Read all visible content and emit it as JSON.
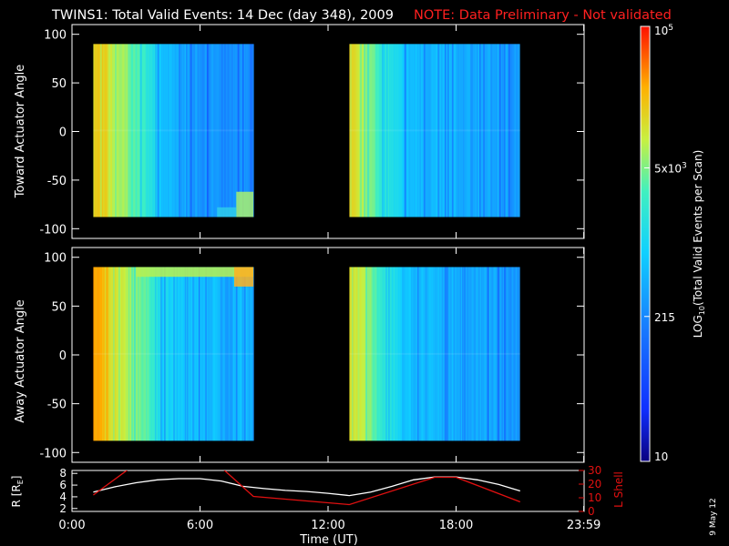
{
  "header": {
    "title": "TWINS1: Total Valid Events: 14 Dec (day 348), 2009",
    "note": "NOTE: Data Preliminary - Not validated"
  },
  "colors": {
    "background": "#000000",
    "axis": "#ffffff",
    "note": "#ff2020",
    "r_line": "#ffffff",
    "lshell_line": "#e01010"
  },
  "panels": {
    "toward": {
      "ylabel": "Toward Actuator Angle"
    },
    "away": {
      "ylabel": "Away Actuator Angle"
    }
  },
  "orbit": {
    "r_label": "R [R",
    "r_subscript": "E",
    "r_close": "]",
    "lshell_label": "L Shell"
  },
  "xaxis": {
    "label": "Time (UT)"
  },
  "colorbar": {
    "title": "LOG",
    "title_subscript": "10",
    "title_rest": "(Total Valid Events per Scan)"
  },
  "footer": {
    "date_stamp": "9 May 12"
  },
  "chart_data": [
    {
      "type": "heatmap",
      "name": "toward",
      "xlim": [
        0,
        24
      ],
      "ylim": [
        -110,
        110
      ],
      "yticks": [
        100,
        50,
        0,
        -50,
        -100
      ],
      "ytick_labels": [
        "100",
        "50",
        "0",
        "-50",
        "-100"
      ],
      "ylabel": "Toward Actuator Angle",
      "data_blocks": [
        [
          1.0,
          8.5
        ],
        [
          13.0,
          21.0
        ]
      ],
      "angle_range": [
        -88,
        90
      ]
    },
    {
      "type": "heatmap",
      "name": "away",
      "xlim": [
        0,
        24
      ],
      "ylim": [
        -110,
        110
      ],
      "yticks": [
        100,
        50,
        0,
        -50,
        -100
      ],
      "ytick_labels": [
        "100",
        "50",
        "0",
        "-50",
        "-100"
      ],
      "ylabel": "Away Actuator Angle",
      "data_blocks": [
        [
          1.0,
          8.5
        ],
        [
          13.0,
          21.0
        ]
      ],
      "angle_range": [
        -88,
        90
      ]
    },
    {
      "type": "line",
      "name": "orbit",
      "xlim": [
        0,
        24
      ],
      "xticks": [
        0,
        6,
        12,
        18,
        23.983
      ],
      "xtick_labels": [
        "0:00",
        "6:00",
        "12:00",
        "18:00",
        "23:59"
      ],
      "xlabel": "Time (UT)",
      "left_axis": {
        "ylim": [
          1.5,
          8.5
        ],
        "ticks": [
          2,
          4,
          6,
          8
        ],
        "tick_labels": [
          "2",
          "4",
          "6",
          "8"
        ]
      },
      "right_axis": {
        "ylim": [
          0,
          30
        ],
        "ticks": [
          0,
          10,
          20,
          30
        ],
        "tick_labels": [
          "0",
          "10",
          "20",
          "30"
        ]
      },
      "series": [
        {
          "name": "R",
          "axis": "left",
          "x": [
            1.0,
            2.0,
            3.0,
            4.0,
            5.0,
            6.0,
            7.0,
            8.0,
            9.0,
            10.0,
            11.0,
            12.0,
            13.0,
            14.0,
            15.0,
            16.0,
            17.0,
            18.0,
            19.0,
            20.0,
            21.0
          ],
          "y": [
            4.8,
            5.7,
            6.4,
            6.9,
            7.1,
            7.1,
            6.7,
            5.8,
            5.4,
            5.1,
            4.9,
            4.6,
            4.2,
            4.8,
            5.8,
            6.9,
            7.4,
            7.4,
            6.9,
            6.1,
            5.0
          ]
        },
        {
          "name": "L Shell",
          "axis": "right",
          "x": [
            1.0,
            3.0,
            6.8,
            8.5,
            13.0,
            17.0,
            18.0,
            21.0
          ],
          "y": [
            12,
            35,
            35,
            11,
            5,
            25,
            25,
            7
          ]
        }
      ]
    },
    {
      "type": "heatmap",
      "name": "colorbar",
      "scale": "log",
      "range": [
        10,
        100000
      ],
      "tick_labels": [
        {
          "base": "10",
          "exp": "5"
        },
        {
          "base": "5x10",
          "exp": "3"
        },
        {
          "base": "215",
          "exp": ""
        },
        {
          "base": "10",
          "exp": ""
        }
      ],
      "tick_values": [
        100000,
        5000,
        215,
        10
      ]
    }
  ]
}
